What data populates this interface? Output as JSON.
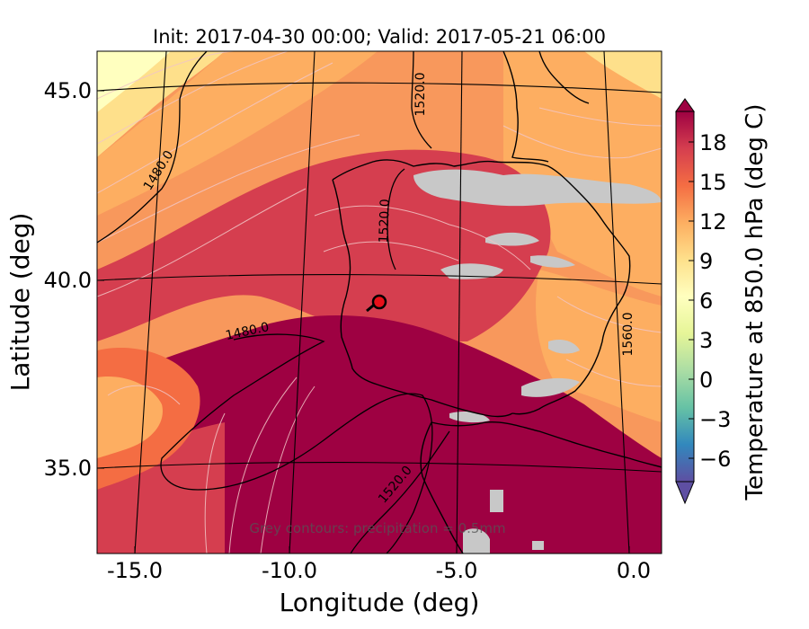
{
  "title": "Init: 2017-04-30 00:00; Valid: 2017-05-21 06:00",
  "map": {
    "xlabel": "Longitude (deg)",
    "ylabel": "Latitude (deg)",
    "x_ticks": [
      "-15.0",
      "-10.0",
      "-5.0",
      "0.0"
    ],
    "y_ticks": [
      "45.0",
      "40.0",
      "35.0"
    ],
    "contour_labels": [
      "1480.0",
      "1520.0",
      "1520.0",
      "1480.0",
      "1520.0",
      "1560.0"
    ],
    "note": "Grey contours: precipitation = 0.5mm",
    "marker": "station marker",
    "lon_range": [
      -15.8,
      0.2
    ],
    "lat_range": [
      32.5,
      46.0
    ]
  },
  "colorbar": {
    "label": "Temperature at 850.0 hPa (deg C)",
    "ticks": [
      "18",
      "15",
      "12",
      "9",
      "6",
      "3",
      "0",
      "−3",
      "−6"
    ],
    "range": [
      -8,
      20
    ],
    "extend": "both",
    "colormap": [
      "#5e4fa2",
      "#3288bd",
      "#66c2a5",
      "#abdda4",
      "#e6f598",
      "#ffffbf",
      "#fee08b",
      "#fdae61",
      "#f46d43",
      "#d53e4f",
      "#9e0142"
    ]
  },
  "colors": {
    "hot": "#9e0142",
    "red": "#d53e4f",
    "orange": "#f46d43",
    "light_orange": "#fdae61",
    "yellow": "#fee08b",
    "pale": "#ffffbf",
    "precip_grey": "#c8c8c8",
    "marker": "#e8101a"
  }
}
